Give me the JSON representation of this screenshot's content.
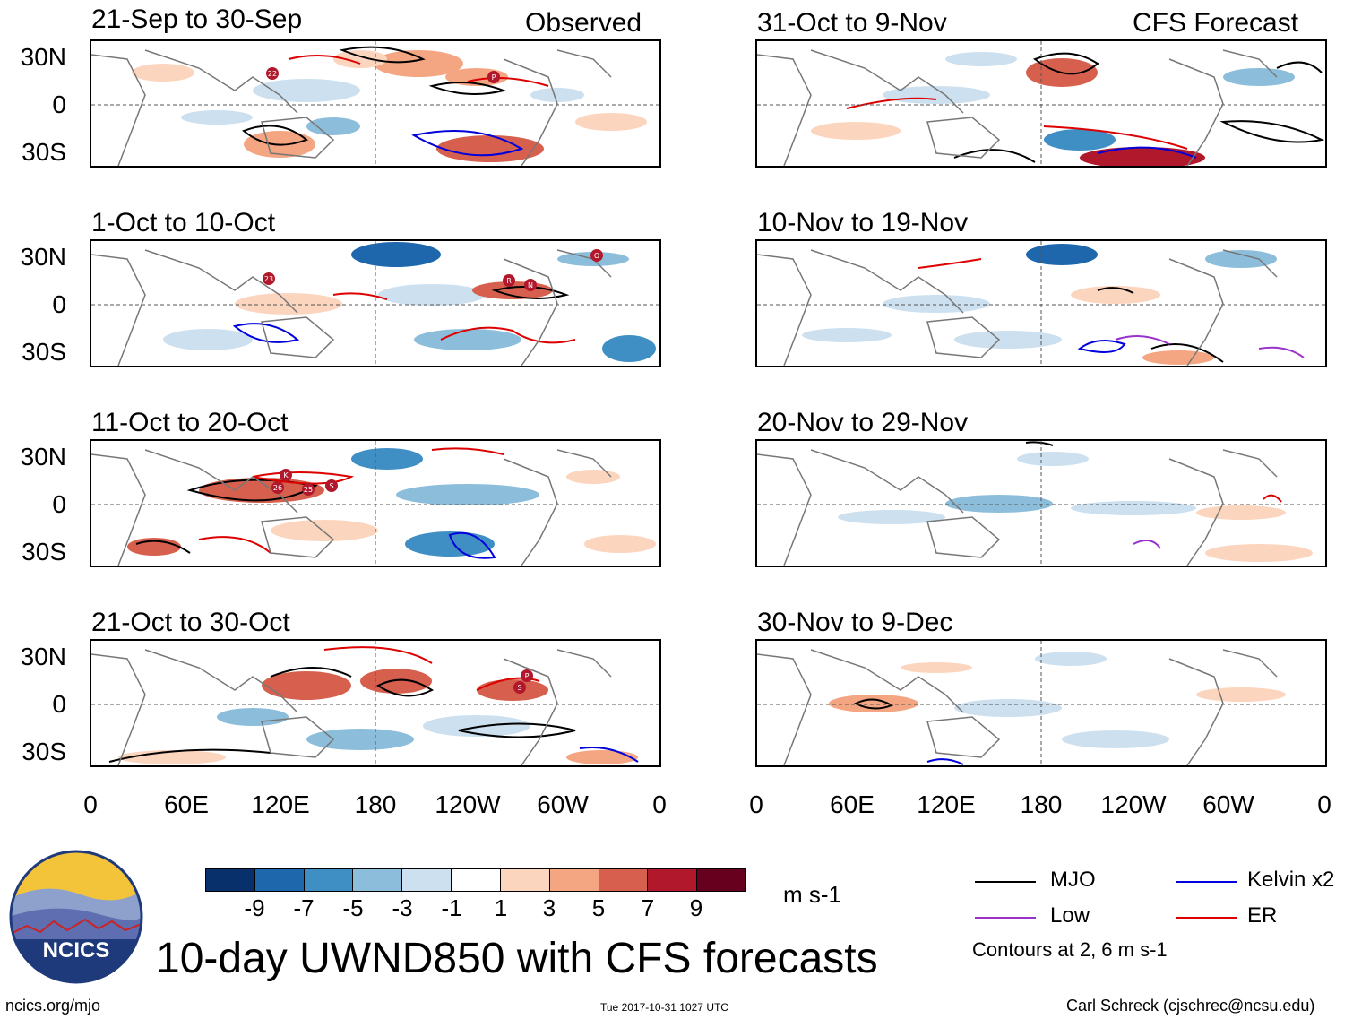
{
  "panels": [
    {
      "date": "21-Sep to 30-Sep",
      "label": "Observed"
    },
    {
      "date": "1-Oct to 10-Oct"
    },
    {
      "date": "11-Oct to 20-Oct"
    },
    {
      "date": "21-Oct to 30-Oct"
    },
    {
      "date": "31-Oct to 9-Nov",
      "label": "CFS Forecast"
    },
    {
      "date": "10-Nov to 19-Nov"
    },
    {
      "date": "20-Nov to 29-Nov"
    },
    {
      "date": "30-Nov to 9-Dec"
    }
  ],
  "lat_ticks": [
    "30N",
    "0",
    "30S"
  ],
  "lon_ticks": [
    "0",
    "60E",
    "120E",
    "180",
    "120W",
    "60W",
    "0"
  ],
  "storm_markers": {
    "p1": [
      "22",
      "P"
    ],
    "p2": [
      "23",
      "R",
      "N",
      "O"
    ],
    "p3": [
      "K",
      "26",
      "25",
      "S"
    ],
    "p4": [
      "P",
      "S"
    ]
  },
  "colorbar": {
    "labels": [
      "-9",
      "-7",
      "-5",
      "-3",
      "-1",
      "1",
      "3",
      "5",
      "7",
      "9"
    ],
    "colors": [
      "#08306b",
      "#1f67ad",
      "#3f8fc4",
      "#8cbedc",
      "#cce0ef",
      "#ffffff",
      "#fcd5bf",
      "#f4a582",
      "#d6604d",
      "#b2182b",
      "#67001f"
    ],
    "units": "m s-1"
  },
  "legend": {
    "items": [
      {
        "label": "MJO",
        "color": "#000000"
      },
      {
        "label": "Kelvin x2",
        "color": "#0000dd"
      },
      {
        "label": "Low",
        "color": "#9932cc"
      },
      {
        "label": "ER",
        "color": "#dd0000"
      }
    ],
    "note": "Contours at 2, 6 m s-1"
  },
  "logo": {
    "text": "NCICS"
  },
  "title": "10-day UWND850 with CFS forecasts",
  "footer": {
    "url": "ncics.org/mjo",
    "timestamp": "Tue 2017-10-31 1027 UTC",
    "author": "Carl Schreck (cjschrec@ncsu.edu)"
  }
}
